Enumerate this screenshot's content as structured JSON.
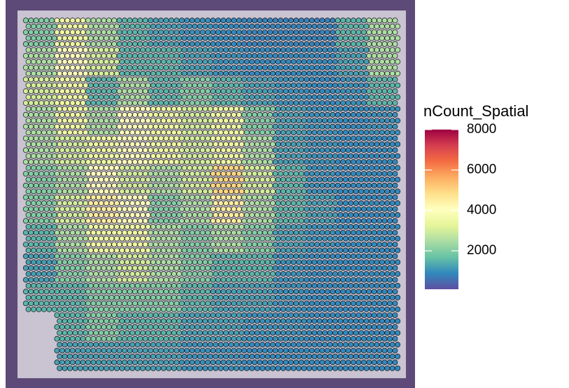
{
  "chart_data": {
    "type": "spatial",
    "legend_title": "nCount_Spatial",
    "clim": [
      100,
      8000
    ],
    "colorbar_ticks": [
      2000,
      4000,
      6000,
      8000
    ],
    "colors": [
      "#5E4FA2",
      "#3288BD",
      "#66C2A5",
      "#ABDDA4",
      "#E6F598",
      "#FFFFBF",
      "#FEE08B",
      "#FDAE61",
      "#F46D43",
      "#D53E4F",
      "#9E0142"
    ],
    "values": [
      [
        2000,
        3500,
        2500,
        1500,
        1200,
        1000,
        900,
        800,
        800,
        800,
        1500,
        2500
      ],
      [
        2500,
        4000,
        3000,
        1500,
        1500,
        1200,
        1000,
        900,
        900,
        900,
        1200,
        2500
      ],
      [
        3000,
        3500,
        1500,
        2500,
        1500,
        2000,
        1500,
        1200,
        1000,
        900,
        1000,
        1500
      ],
      [
        2500,
        3500,
        2500,
        4000,
        3500,
        3000,
        3500,
        2000,
        1200,
        1000,
        900,
        1000
      ],
      [
        2500,
        3000,
        3500,
        4000,
        3500,
        3000,
        3500,
        2500,
        1200,
        1000,
        900,
        900
      ],
      [
        2000,
        2500,
        4000,
        3000,
        2500,
        3000,
        5000,
        3000,
        1500,
        1000,
        900,
        900
      ],
      [
        2000,
        3000,
        4500,
        4000,
        2000,
        2500,
        4500,
        2500,
        1500,
        1200,
        900,
        900
      ],
      [
        1500,
        2500,
        3500,
        3500,
        2500,
        2000,
        2500,
        2000,
        1200,
        1000,
        900,
        900
      ],
      [
        1200,
        2000,
        2500,
        3000,
        2500,
        2000,
        1500,
        1500,
        1000,
        900,
        900,
        900
      ],
      [
        1500,
        1500,
        2000,
        2000,
        2000,
        1500,
        1200,
        1200,
        1000,
        900,
        900,
        900
      ],
      [
        null,
        1500,
        2000,
        1500,
        1500,
        1200,
        1200,
        1000,
        1000,
        900,
        900,
        900
      ],
      [
        null,
        1200,
        1200,
        1200,
        1200,
        1000,
        1000,
        900,
        900,
        900,
        900,
        900
      ]
    ]
  }
}
